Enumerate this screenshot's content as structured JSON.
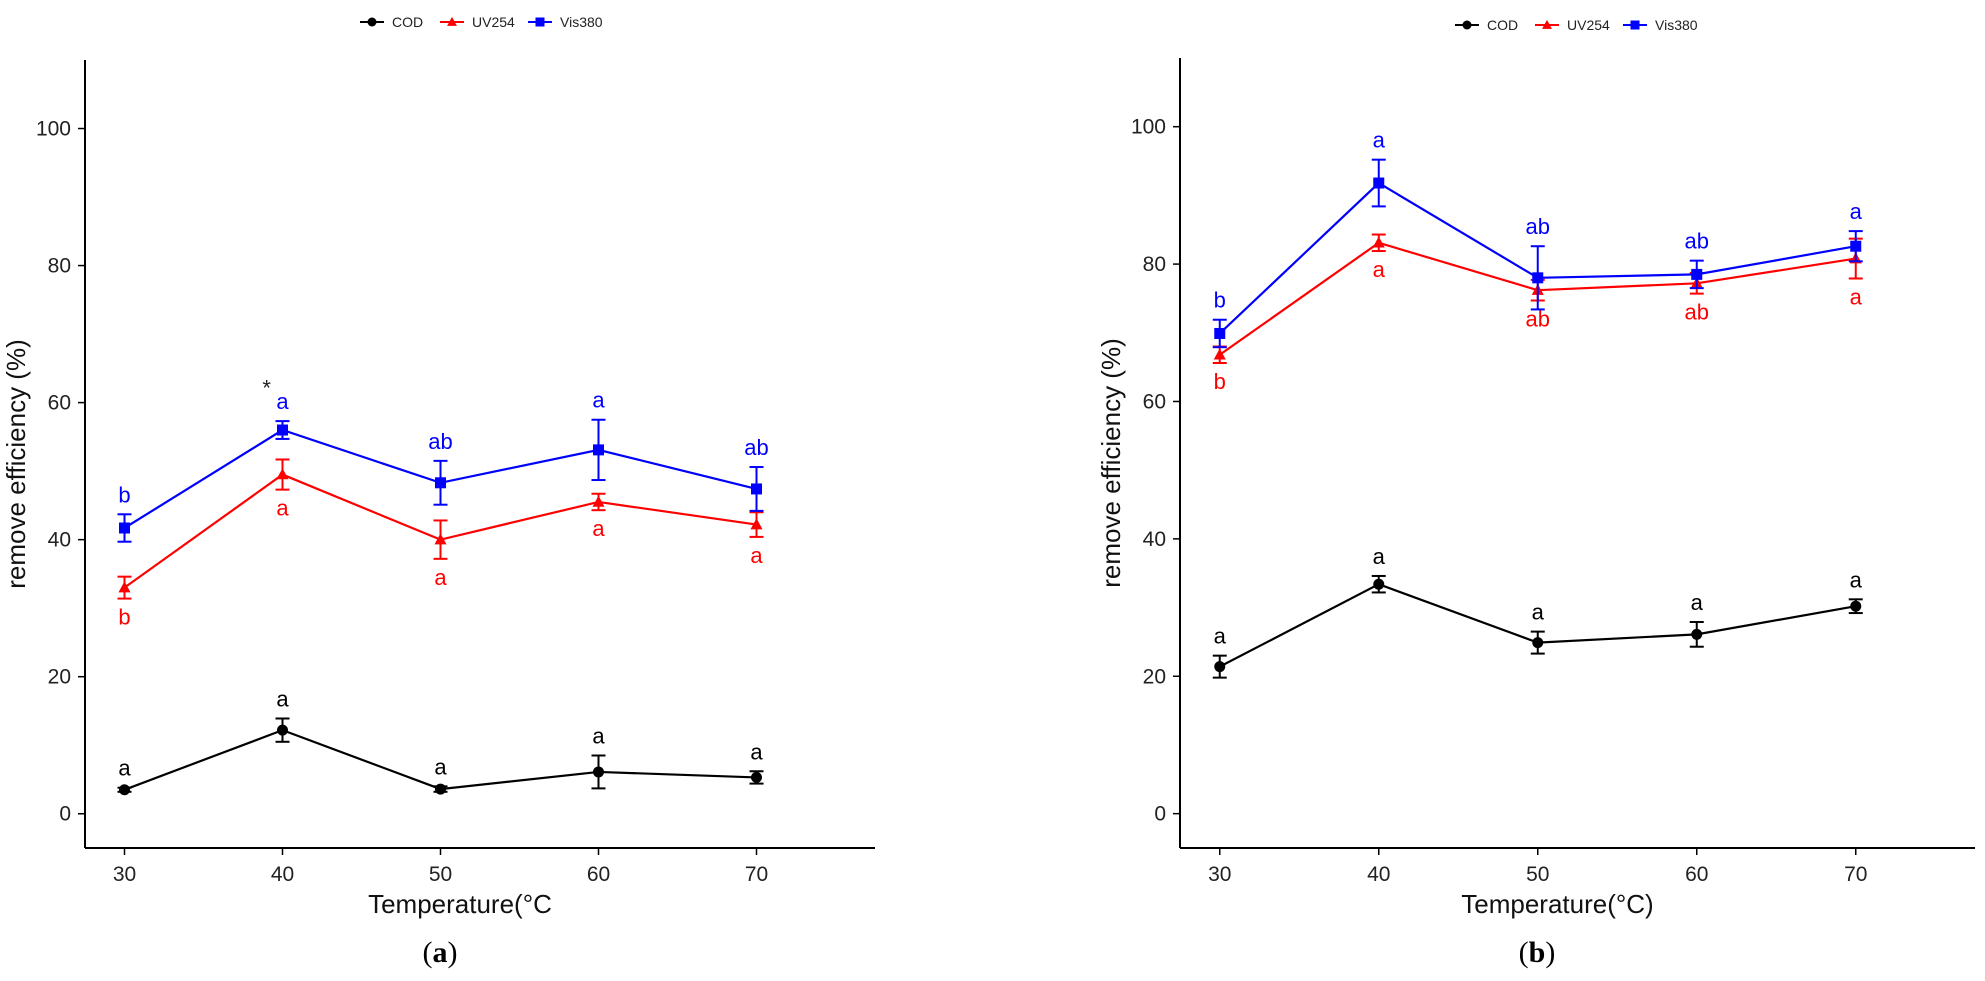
{
  "chart_data": [
    {
      "type": "line",
      "panel_label": "a",
      "caption_open": "(",
      "caption_close": ")",
      "xlabel": "Temperature(°C",
      "ylabel": "remove efficiency (%)",
      "x": [
        30,
        40,
        50,
        60,
        70
      ],
      "x_ticks": [
        "30",
        "40",
        "50",
        "60",
        "70"
      ],
      "y_ticks": [
        "0",
        "20",
        "40",
        "60",
        "80",
        "100"
      ],
      "xlim": [
        27.5,
        77.5
      ],
      "ylim": [
        -5,
        110
      ],
      "legend": {
        "position": "top",
        "entries": [
          "COD",
          "UV254",
          "Vis380"
        ]
      },
      "series": [
        {
          "name": "COD",
          "color": "#000000",
          "marker": "circle",
          "values": [
            3.5,
            12.2,
            3.6,
            6.1,
            5.3
          ],
          "error": [
            0.3,
            1.7,
            0.4,
            2.4,
            0.9
          ],
          "sig_labels": [
            "a",
            "a",
            "a",
            "a",
            "a"
          ],
          "sig_position": "above"
        },
        {
          "name": "UV254",
          "color": "#ff0000",
          "marker": "triangle",
          "values": [
            33.0,
            49.5,
            40.0,
            45.5,
            42.2
          ],
          "error": [
            1.6,
            2.2,
            2.8,
            1.2,
            1.8
          ],
          "sig_labels": [
            "b",
            "a",
            "a",
            "a",
            "a"
          ],
          "sig_position": "below"
        },
        {
          "name": "Vis380",
          "color": "#0000ff",
          "marker": "square",
          "values": [
            41.7,
            56.0,
            48.3,
            53.1,
            47.4
          ],
          "error": [
            2.0,
            1.3,
            3.2,
            4.4,
            3.2
          ],
          "sig_labels": [
            "b",
            "a",
            "ab",
            "a",
            "ab"
          ],
          "sig_position": "above"
        }
      ],
      "annotations": [
        {
          "text": "*",
          "x": 39,
          "y": 62.5
        }
      ]
    },
    {
      "type": "line",
      "panel_label": "b",
      "caption_open": "(",
      "caption_close": ")",
      "xlabel": "Temperature(°C)",
      "ylabel": "remove efficiency (%)",
      "x": [
        30,
        40,
        50,
        60,
        70
      ],
      "x_ticks": [
        "30",
        "40",
        "50",
        "60",
        "70"
      ],
      "y_ticks": [
        "0",
        "20",
        "40",
        "60",
        "80",
        "100"
      ],
      "xlim": [
        27.5,
        77.5
      ],
      "ylim": [
        -5,
        110
      ],
      "legend": {
        "position": "top",
        "entries": [
          "COD",
          "UV254",
          "Vis380"
        ]
      },
      "series": [
        {
          "name": "COD",
          "color": "#000000",
          "marker": "circle",
          "values": [
            21.4,
            33.4,
            24.9,
            26.1,
            30.2
          ],
          "error": [
            1.6,
            1.2,
            1.6,
            1.8,
            1.0
          ],
          "sig_labels": [
            "a",
            "a",
            "a",
            "a",
            "a"
          ],
          "sig_position": "above"
        },
        {
          "name": "UV254",
          "color": "#ff0000",
          "marker": "triangle",
          "values": [
            66.8,
            83.1,
            76.2,
            77.2,
            80.8
          ],
          "error": [
            1.2,
            1.2,
            1.5,
            1.5,
            2.9
          ],
          "sig_labels": [
            "b",
            "a",
            "ab",
            "ab",
            "a"
          ],
          "sig_position": "below"
        },
        {
          "name": "Vis380",
          "color": "#0000ff",
          "marker": "square",
          "values": [
            69.9,
            91.8,
            78.0,
            78.5,
            82.6
          ],
          "error": [
            2.0,
            3.4,
            4.6,
            2.0,
            2.2
          ],
          "sig_labels": [
            "b",
            "a",
            "ab",
            "ab",
            "a"
          ],
          "sig_position": "above"
        }
      ],
      "annotations": []
    }
  ]
}
